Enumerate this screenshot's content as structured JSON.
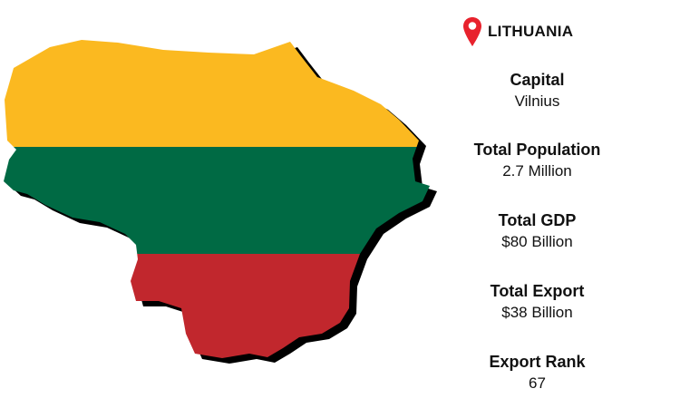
{
  "country": "LITHUANIA",
  "icons": {
    "location": "map-pin-icon"
  },
  "colors": {
    "yellow": "#FBB920",
    "green": "#006A44",
    "red": "#C1272D",
    "pin": "#E8222D",
    "shadow": "#000000"
  },
  "facts": [
    {
      "label": "Capital",
      "value": "Vilnius"
    },
    {
      "label": "Total Population",
      "value": "2.7 Million"
    },
    {
      "label": "Total GDP",
      "value": "$80 Billion"
    },
    {
      "label": "Total Export",
      "value": "$38 Billion"
    },
    {
      "label": "Export Rank",
      "value": "67"
    }
  ]
}
